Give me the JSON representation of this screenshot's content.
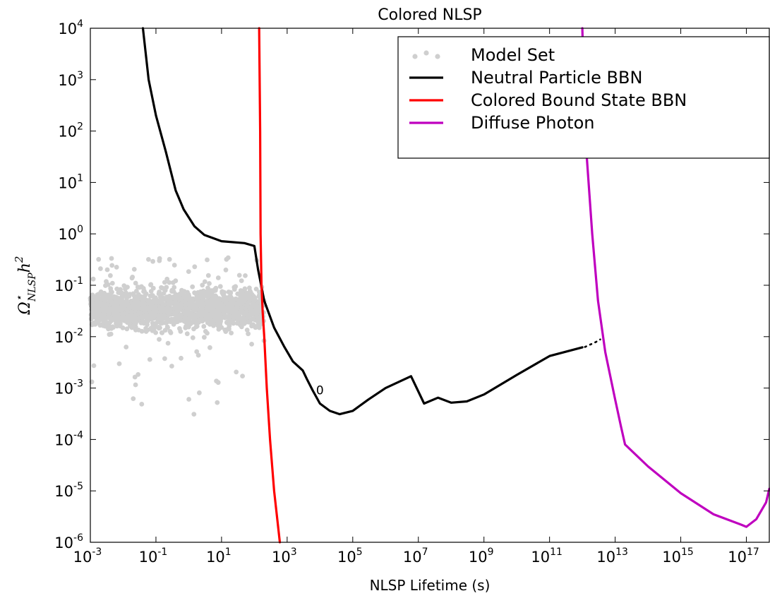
{
  "chart_data": {
    "type": "line",
    "title": "Colored NLSP",
    "xlabel": "NLSP Lifetime (s)",
    "ylabel_parts": {
      "base": "Ω",
      "sup": "⋆",
      "sub": "NLSP",
      "tail": "h",
      "tail_sup": "2"
    },
    "x_scale": "log",
    "y_scale": "log",
    "xlim": [
      0.001,
      5e+17
    ],
    "ylim": [
      1e-06,
      10000
    ],
    "x_ticks": [
      {
        "base": "10",
        "exp": "-3",
        "value": 0.001
      },
      {
        "base": "10",
        "exp": "-1",
        "value": 0.1
      },
      {
        "base": "10",
        "exp": "1",
        "value": 10
      },
      {
        "base": "10",
        "exp": "3",
        "value": 1000
      },
      {
        "base": "10",
        "exp": "5",
        "value": 100000
      },
      {
        "base": "10",
        "exp": "7",
        "value": 10000000
      },
      {
        "base": "10",
        "exp": "9",
        "value": 1000000000
      },
      {
        "base": "10",
        "exp": "11",
        "value": 100000000000
      },
      {
        "base": "10",
        "exp": "13",
        "value": 10000000000000.0
      },
      {
        "base": "10",
        "exp": "15",
        "value": 1000000000000000.0
      },
      {
        "base": "10",
        "exp": "17",
        "value": 1e+17
      }
    ],
    "y_ticks": [
      {
        "base": "10",
        "exp": "-6",
        "value": 1e-06
      },
      {
        "base": "10",
        "exp": "-5",
        "value": 1e-05
      },
      {
        "base": "10",
        "exp": "-4",
        "value": 0.0001
      },
      {
        "base": "10",
        "exp": "-3",
        "value": 0.001
      },
      {
        "base": "10",
        "exp": "-2",
        "value": 0.01
      },
      {
        "base": "10",
        "exp": "-1",
        "value": 0.1
      },
      {
        "base": "10",
        "exp": "0",
        "value": 1
      },
      {
        "base": "10",
        "exp": "1",
        "value": 10
      },
      {
        "base": "10",
        "exp": "2",
        "value": 100
      },
      {
        "base": "10",
        "exp": "3",
        "value": 1000
      },
      {
        "base": "10",
        "exp": "4",
        "value": 10000
      }
    ],
    "legend": {
      "placement": "top-right",
      "entries": [
        {
          "label": "Model Set",
          "style": "scatter",
          "color": "#cfcfcf"
        },
        {
          "label": "Neutral Particle BBN",
          "style": "line",
          "color": "#000000"
        },
        {
          "label": "Colored Bound State BBN",
          "style": "line",
          "color": "#ff0000"
        },
        {
          "label": "Diffuse Photon",
          "style": "line",
          "color": "#bf00bf"
        }
      ]
    },
    "annotations": [
      {
        "text": "0",
        "x": 10000,
        "y": 0.00075
      }
    ],
    "series": [
      {
        "name": "Neutral Particle BBN",
        "color": "#000000",
        "points": [
          [
            0.04,
            10000
          ],
          [
            0.06,
            1000
          ],
          [
            0.1,
            200
          ],
          [
            0.2,
            40
          ],
          [
            0.4,
            7
          ],
          [
            0.7,
            3
          ],
          [
            1.5,
            1.4
          ],
          [
            3,
            0.95
          ],
          [
            10,
            0.72
          ],
          [
            50,
            0.66
          ],
          [
            100,
            0.58
          ],
          [
            130,
            0.2
          ],
          [
            200,
            0.05
          ],
          [
            400,
            0.015
          ],
          [
            800,
            0.0065
          ],
          [
            1500,
            0.0033
          ],
          [
            3000,
            0.0022
          ],
          [
            4000,
            0.0015
          ],
          [
            6000,
            0.0009
          ],
          [
            10000,
            0.0005
          ],
          [
            20000,
            0.00036
          ],
          [
            40000,
            0.00031
          ],
          [
            100000,
            0.00036
          ],
          [
            300000,
            0.0006
          ],
          [
            1000000,
            0.001
          ],
          [
            6000000,
            0.0017
          ],
          [
            15000000,
            0.0005
          ],
          [
            40000000,
            0.00065
          ],
          [
            100000000,
            0.00052
          ],
          [
            300000000,
            0.00055
          ],
          [
            1000000000,
            0.00075
          ],
          [
            10000000000,
            0.0018
          ],
          [
            100000000000,
            0.0042
          ],
          [
            1000000000000,
            0.0062
          ]
        ]
      },
      {
        "name": "Neutral Particle BBN (dotted extension)",
        "color": "#000000",
        "dotted": true,
        "points": [
          [
            1200000000000,
            0.0063
          ],
          [
            2500000000000,
            0.0078
          ],
          [
            3500000000000,
            0.0088
          ]
        ]
      },
      {
        "name": "Colored Bound State BBN",
        "color": "#ff0000",
        "points": [
          [
            140,
            10000
          ],
          [
            150,
            100
          ],
          [
            155,
            1
          ],
          [
            165,
            0.1
          ],
          [
            180,
            0.03
          ],
          [
            200,
            0.01
          ],
          [
            240,
            0.001
          ],
          [
            300,
            0.0001
          ],
          [
            400,
            1e-05
          ],
          [
            600,
            1e-06
          ]
        ]
      },
      {
        "name": "Diffuse Photon",
        "color": "#bf00bf",
        "points": [
          [
            1000000000000,
            10000
          ],
          [
            1200000000000,
            100
          ],
          [
            2000000000000,
            1
          ],
          [
            3000000000000,
            0.05
          ],
          [
            5000000000000,
            0.005
          ],
          [
            10000000000000,
            0.0006
          ],
          [
            15000000000000,
            0.00018
          ],
          [
            20000000000000,
            8e-05
          ],
          [
            100000000000000.0,
            3e-05
          ],
          [
            1000000000000000.0,
            9e-06
          ],
          [
            1e+16,
            3.5e-06
          ],
          [
            7e+16,
            2.2e-06
          ],
          [
            1e+17,
            2e-06
          ],
          [
            2e+17,
            2.8e-06
          ],
          [
            4e+17,
            6e-06
          ],
          [
            5e+17,
            1.1e-05
          ]
        ]
      }
    ],
    "scatter": {
      "name": "Model Set",
      "color": "#cfcfcf",
      "x_range": [
        0.001,
        200
      ],
      "y_range": [
        0.0002,
        0.35
      ],
      "dense_y_range": [
        0.006,
        0.2
      ]
    }
  }
}
